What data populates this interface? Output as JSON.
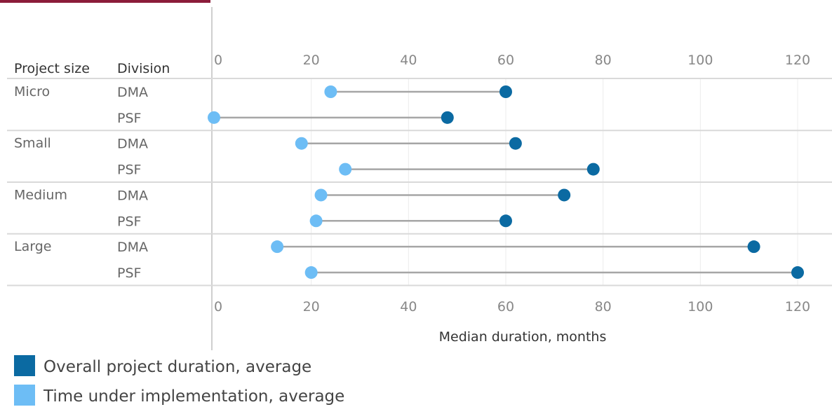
{
  "chart_data": {
    "type": "dumbbell",
    "headers": {
      "size": "Project size",
      "division": "Division"
    },
    "xlabel": "Median duration, months",
    "xlim": [
      0,
      120
    ],
    "ticks": [
      0,
      20,
      40,
      60,
      80,
      100,
      120
    ],
    "grid": true,
    "legend_position": "bottom-left",
    "groups": [
      {
        "size": "Micro",
        "rows": [
          {
            "division": "DMA",
            "implementation": 24,
            "overall": 60
          },
          {
            "division": "PSF",
            "implementation": 0,
            "overall": 48
          }
        ]
      },
      {
        "size": "Small",
        "rows": [
          {
            "division": "DMA",
            "implementation": 18,
            "overall": 62
          },
          {
            "division": "PSF",
            "implementation": 27,
            "overall": 78
          }
        ]
      },
      {
        "size": "Medium",
        "rows": [
          {
            "division": "DMA",
            "implementation": 22,
            "overall": 72
          },
          {
            "division": "PSF",
            "implementation": 21,
            "overall": 60
          }
        ]
      },
      {
        "size": "Large",
        "rows": [
          {
            "division": "DMA",
            "implementation": 13,
            "overall": 111
          },
          {
            "division": "PSF",
            "implementation": 20,
            "overall": 120
          }
        ]
      }
    ],
    "series": [
      {
        "key": "overall",
        "name": "Overall project duration, average",
        "color": "#0b6aa2"
      },
      {
        "key": "implementation",
        "name": "Time under implementation, average",
        "color": "#6dbdf5"
      }
    ],
    "connector_color": "#a6a6a6"
  }
}
